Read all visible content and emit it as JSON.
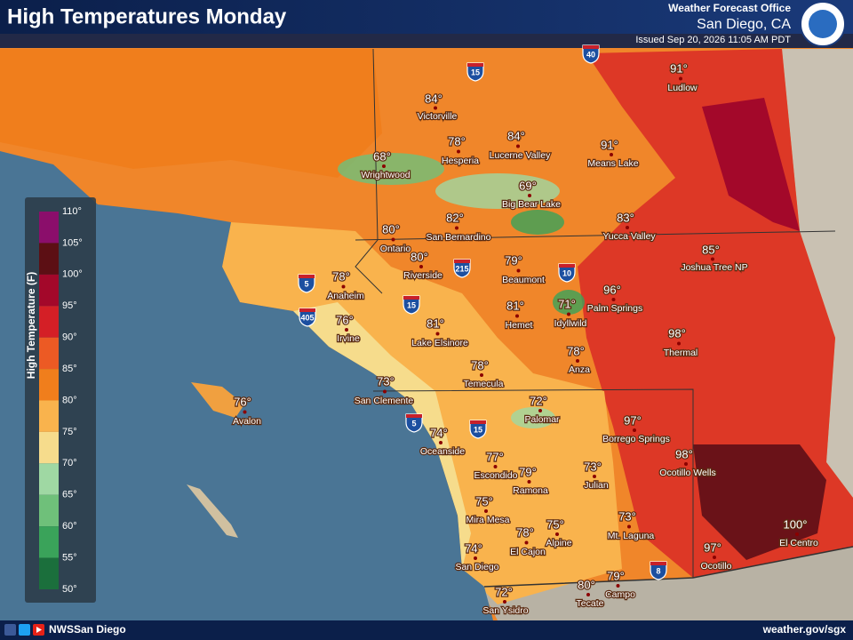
{
  "header": {
    "title": "High Temperatures Monday",
    "office": "Weather Forecast Office",
    "location": "San Diego, CA",
    "issued": "Issued Sep 20, 2026 11:05 AM PDT"
  },
  "legend": {
    "title": "High Temperature (F)",
    "ticks": [
      "110°",
      "105°",
      "100°",
      "95°",
      "90°",
      "85°",
      "80°",
      "75°",
      "70°",
      "65°",
      "60°",
      "55°",
      "50°"
    ],
    "colors": [
      "#8b0e6b",
      "#5c0f14",
      "#a3082a",
      "#d41f26",
      "#ec5a24",
      "#f07e1c",
      "#f9b34d",
      "#f6dc8c",
      "#9fd8a3",
      "#6fc07a",
      "#3aa35a",
      "#1b6f3c"
    ]
  },
  "cities": [
    {
      "name": "Ludlow",
      "temp": "91°"
    },
    {
      "name": "Victorville",
      "temp": "84°"
    },
    {
      "name": "Hesperia",
      "temp": "78°"
    },
    {
      "name": "Lucerne Valley",
      "temp": "84°"
    },
    {
      "name": "Means Lake",
      "temp": "91°"
    },
    {
      "name": "Wrightwood",
      "temp": "68°"
    },
    {
      "name": "Big Bear Lake",
      "temp": "69°"
    },
    {
      "name": "Yucca Valley",
      "temp": "83°"
    },
    {
      "name": "San Bernardino",
      "temp": "82°"
    },
    {
      "name": "Ontario",
      "temp": "80°"
    },
    {
      "name": "Riverside",
      "temp": "80°"
    },
    {
      "name": "Joshua Tree NP",
      "temp": "85°"
    },
    {
      "name": "Beaumont",
      "temp": "79°"
    },
    {
      "name": "Anaheim",
      "temp": "78°"
    },
    {
      "name": "Palm Springs",
      "temp": "96°"
    },
    {
      "name": "Irvine",
      "temp": "76°"
    },
    {
      "name": "Hemet",
      "temp": "81°"
    },
    {
      "name": "Idyllwild",
      "temp": "71°"
    },
    {
      "name": "Lake Elsinore",
      "temp": "81°"
    },
    {
      "name": "Thermal",
      "temp": "98°"
    },
    {
      "name": "Anza",
      "temp": "78°"
    },
    {
      "name": "Temecula",
      "temp": "78°"
    },
    {
      "name": "San Clemente",
      "temp": "73°"
    },
    {
      "name": "Avalon",
      "temp": "76°"
    },
    {
      "name": "Palomar",
      "temp": "72°"
    },
    {
      "name": "Borrego Springs",
      "temp": "97°"
    },
    {
      "name": "Oceanside",
      "temp": "74°"
    },
    {
      "name": "Ocotillo Wells",
      "temp": "98°"
    },
    {
      "name": "Escondido",
      "temp": "77°"
    },
    {
      "name": "Ramona",
      "temp": "79°"
    },
    {
      "name": "Julian",
      "temp": "73°"
    },
    {
      "name": "Mira Mesa",
      "temp": "75°"
    },
    {
      "name": "Mt. Laguna",
      "temp": "73°"
    },
    {
      "name": "Alpine",
      "temp": "75°"
    },
    {
      "name": "El Cajon",
      "temp": "78°"
    },
    {
      "name": "San Diego",
      "temp": "74°"
    },
    {
      "name": "El Centro",
      "temp": "100°"
    },
    {
      "name": "Ocotillo",
      "temp": "97°"
    },
    {
      "name": "Campo",
      "temp": "79°"
    },
    {
      "name": "Tecate",
      "temp": "80°"
    },
    {
      "name": "San Ysidro",
      "temp": "72°"
    }
  ],
  "highways": [
    "15",
    "40",
    "10",
    "5",
    "405",
    "215",
    "15",
    "5",
    "15",
    "8"
  ],
  "footer": {
    "social": "NWSSan Diego",
    "url": "weather.gov/sgx"
  }
}
